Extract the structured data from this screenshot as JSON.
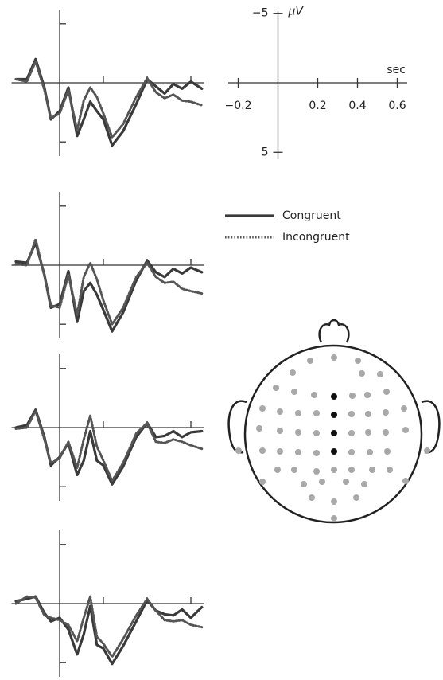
{
  "chart_data": [
    {
      "type": "line",
      "invert_y": true,
      "xlim": [
        -0.22,
        0.66
      ],
      "ylim": [
        -6.2,
        6.2
      ],
      "xticks": [
        0.2,
        0.4,
        0.6
      ],
      "yticks": [
        -5,
        5
      ],
      "x": [
        -0.2,
        -0.15,
        -0.11,
        -0.07,
        -0.04,
        0,
        0.04,
        0.08,
        0.11,
        0.14,
        0.17,
        0.2,
        0.24,
        0.29,
        0.35,
        0.4,
        0.44,
        0.48,
        0.52,
        0.56,
        0.6,
        0.65
      ],
      "series": [
        {
          "name": "Congruent",
          "color": "#3a3a3a",
          "style": "solid",
          "values": [
            -0.3,
            -0.3,
            -2.0,
            0.4,
            3.1,
            2.4,
            0.4,
            4.5,
            3.1,
            1.6,
            2.4,
            3.1,
            5.3,
            4.1,
            1.8,
            -0.3,
            0.3,
            0.9,
            0.1,
            0.5,
            -0.1,
            0.5
          ]
        },
        {
          "name": "Incongruent",
          "color": "#555555",
          "style": "dotted",
          "values": [
            -0.3,
            -0.1,
            -1.8,
            0.6,
            3.0,
            2.6,
            0.6,
            4.0,
            1.5,
            0.4,
            1.2,
            2.6,
            4.6,
            3.5,
            1.2,
            -0.4,
            0.8,
            1.3,
            1.0,
            1.5,
            1.6,
            1.9
          ]
        }
      ]
    },
    {
      "type": "line",
      "invert_y": true,
      "xlim": [
        -0.22,
        0.66
      ],
      "ylim": [
        -6.2,
        6.2
      ],
      "xticks": [
        0.2,
        0.4,
        0.6
      ],
      "yticks": [
        -5,
        5
      ],
      "x": [
        -0.2,
        -0.15,
        -0.11,
        -0.07,
        -0.04,
        0,
        0.04,
        0.08,
        0.11,
        0.14,
        0.17,
        0.2,
        0.24,
        0.29,
        0.35,
        0.4,
        0.44,
        0.48,
        0.52,
        0.56,
        0.6,
        0.65
      ],
      "series": [
        {
          "name": "Congruent",
          "color": "#3a3a3a",
          "style": "solid",
          "values": [
            -0.3,
            -0.2,
            -1.9,
            0.8,
            3.6,
            3.3,
            0.5,
            4.8,
            2.2,
            1.5,
            2.5,
            3.8,
            5.6,
            4.0,
            1.3,
            -0.4,
            0.6,
            1.0,
            0.3,
            0.7,
            0.2,
            0.6
          ]
        },
        {
          "name": "Incongruent",
          "color": "#555555",
          "style": "dotted",
          "values": [
            -0.1,
            0,
            -2.2,
            0.9,
            3.4,
            3.6,
            0.8,
            4.2,
            1.0,
            -0.2,
            1.2,
            3.0,
            5.0,
            3.6,
            1.0,
            -0.2,
            1.0,
            1.5,
            1.4,
            2.0,
            2.2,
            2.4
          ]
        }
      ]
    },
    {
      "type": "line",
      "invert_y": true,
      "xlim": [
        -0.22,
        0.66
      ],
      "ylim": [
        -6.2,
        6.2
      ],
      "xticks": [
        0.2,
        0.4,
        0.6
      ],
      "yticks": [
        -5,
        5
      ],
      "x": [
        -0.2,
        -0.15,
        -0.11,
        -0.07,
        -0.04,
        0,
        0.04,
        0.08,
        0.11,
        0.14,
        0.17,
        0.2,
        0.24,
        0.29,
        0.35,
        0.4,
        0.44,
        0.48,
        0.52,
        0.56,
        0.6,
        0.65
      ],
      "series": [
        {
          "name": "Congruent",
          "color": "#3a3a3a",
          "style": "solid",
          "values": [
            0,
            -0.2,
            -1.5,
            0.8,
            3.2,
            2.5,
            1.3,
            4.0,
            2.8,
            0.3,
            2.8,
            3.2,
            4.8,
            3.3,
            0.8,
            -0.4,
            0.8,
            0.7,
            0.3,
            0.8,
            0.4,
            0.3
          ]
        },
        {
          "name": "Incongruent",
          "color": "#555555",
          "style": "dotted",
          "values": [
            0.1,
            0,
            -1.4,
            1.0,
            3.0,
            2.6,
            1.2,
            3.4,
            1.0,
            -1.0,
            1.6,
            2.8,
            4.5,
            3.0,
            0.5,
            -0.4,
            1.2,
            1.3,
            1.0,
            1.2,
            1.5,
            1.8
          ]
        }
      ]
    },
    {
      "type": "line",
      "invert_y": true,
      "xlim": [
        -0.22,
        0.66
      ],
      "ylim": [
        -6.2,
        6.2
      ],
      "xticks": [
        0.2,
        0.4,
        0.6
      ],
      "yticks": [
        -5,
        5
      ],
      "x": [
        -0.2,
        -0.15,
        -0.11,
        -0.07,
        -0.04,
        0,
        0.04,
        0.08,
        0.11,
        0.14,
        0.17,
        0.2,
        0.24,
        0.29,
        0.35,
        0.4,
        0.44,
        0.48,
        0.52,
        0.56,
        0.6,
        0.65
      ],
      "series": [
        {
          "name": "Congruent",
          "color": "#3a3a3a",
          "style": "solid",
          "values": [
            -0.2,
            -0.4,
            -0.6,
            0.8,
            1.5,
            1.2,
            2.2,
            4.3,
            2.6,
            0.2,
            3.5,
            3.8,
            5.1,
            3.6,
            1.5,
            -0.3,
            0.6,
            0.9,
            1.0,
            0.5,
            1.2,
            0.3
          ]
        },
        {
          "name": "Incongruent",
          "color": "#555555",
          "style": "dotted",
          "values": [
            0,
            -0.6,
            -0.5,
            1.0,
            1.2,
            1.4,
            1.8,
            3.2,
            1.2,
            -0.6,
            2.8,
            3.4,
            4.5,
            3.0,
            1.0,
            -0.4,
            0.6,
            1.4,
            1.5,
            1.4,
            1.8,
            2.0
          ]
        }
      ]
    },
    {
      "type": "axis_key",
      "invert_y": true,
      "xlim": [
        -0.25,
        0.65
      ],
      "ylim": [
        -5.5,
        5.5
      ],
      "xticks": [
        {
          "value": -0.2,
          "label": "−0.2"
        },
        0.2,
        0.4,
        0.6
      ],
      "yticks": [
        {
          "value": -5,
          "label": "−5"
        },
        5
      ],
      "xlabel": "sec",
      "ylabel": "μV"
    }
  ]
}
